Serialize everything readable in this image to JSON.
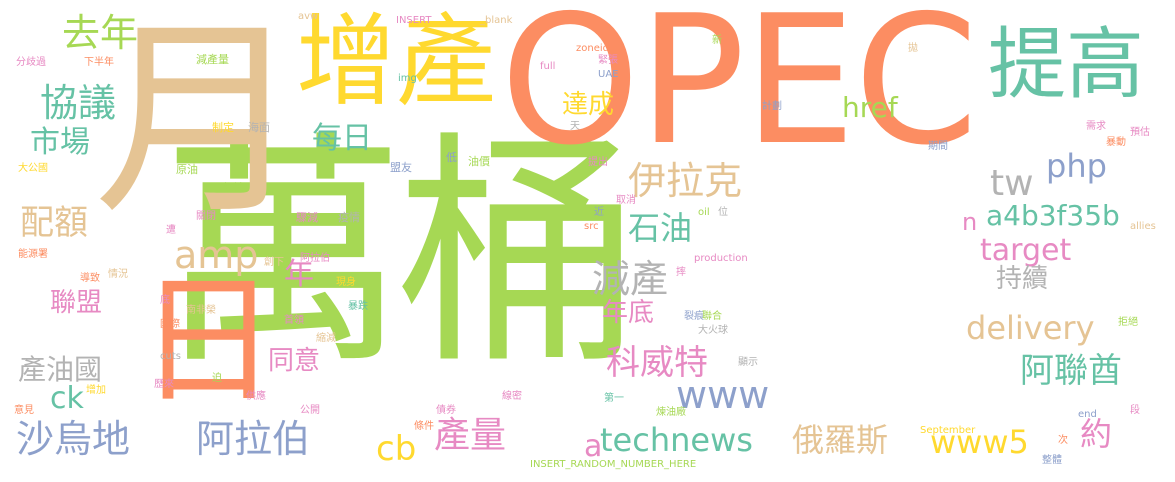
{
  "words": [
    {
      "text": "萬桶",
      "color": "#a6d854",
      "vertical": false
    },
    {
      "text": "OPEC",
      "color": "#fc8d62",
      "vertical": false
    },
    {
      "text": "月",
      "color": "#e5c494",
      "vertical": false
    },
    {
      "text": "日",
      "color": "#fc8d62",
      "vertical": false
    },
    {
      "text": "增產",
      "color": "#ffd92f",
      "vertical": false
    },
    {
      "text": "提高",
      "color": "#66c2a5",
      "vertical": false
    },
    {
      "text": "去年",
      "color": "#a6d854",
      "vertical": false
    },
    {
      "text": "協議",
      "color": "#66c2a5",
      "vertical": false
    },
    {
      "text": "市場",
      "color": "#66c2a5",
      "vertical": false
    },
    {
      "text": "每日",
      "color": "#66c2a5",
      "vertical": false
    },
    {
      "text": "達成",
      "color": "#ffd92f",
      "vertical": false
    },
    {
      "text": "href",
      "color": "#a6d854",
      "vertical": false
    },
    {
      "text": "php",
      "color": "#8da0cb",
      "vertical": false
    },
    {
      "text": "伊拉克",
      "color": "#e5c494",
      "vertical": false
    },
    {
      "text": "tw",
      "color": "#b3b3b3",
      "vertical": false
    },
    {
      "text": "配額",
      "color": "#e5c494",
      "vertical": false
    },
    {
      "text": "amp",
      "color": "#e5c494",
      "vertical": false
    },
    {
      "text": "a4b3f35b",
      "color": "#66c2a5",
      "vertical": false
    },
    {
      "text": "石油",
      "color": "#66c2a5",
      "vertical": false
    },
    {
      "text": "target",
      "color": "#e78ac3",
      "vertical": false
    },
    {
      "text": "n",
      "color": "#e78ac3",
      "vertical": false
    },
    {
      "text": "年",
      "color": "#e78ac3",
      "vertical": false
    },
    {
      "text": "減產",
      "color": "#b3b3b3",
      "vertical": false
    },
    {
      "text": "持續",
      "color": "#b3b3b3",
      "vertical": false
    },
    {
      "text": "聯盟",
      "color": "#e78ac3",
      "vertical": false
    },
    {
      "text": "年底",
      "color": "#e78ac3",
      "vertical": false
    },
    {
      "text": "delivery",
      "color": "#e5c494",
      "vertical": false
    },
    {
      "text": "產油國",
      "color": "#b3b3b3",
      "vertical": false
    },
    {
      "text": "同意",
      "color": "#e78ac3",
      "vertical": false
    },
    {
      "text": "科威特",
      "color": "#e78ac3",
      "vertical": false
    },
    {
      "text": "阿聯酋",
      "color": "#66c2a5",
      "vertical": false
    },
    {
      "text": "ck",
      "color": "#66c2a5",
      "vertical": false
    },
    {
      "text": "www",
      "color": "#8da0cb",
      "vertical": false
    },
    {
      "text": "沙烏地",
      "color": "#8da0cb",
      "vertical": false
    },
    {
      "text": "阿拉伯",
      "color": "#8da0cb",
      "vertical": false
    },
    {
      "text": "cb",
      "color": "#ffd92f",
      "vertical": false
    },
    {
      "text": "產量",
      "color": "#e78ac3",
      "vertical": false
    },
    {
      "text": "a",
      "color": "#e78ac3",
      "vertical": false
    },
    {
      "text": "technews",
      "color": "#66c2a5",
      "vertical": false
    },
    {
      "text": "俄羅斯",
      "color": "#e5c494",
      "vertical": false
    },
    {
      "text": "www5",
      "color": "#ffd92f",
      "vertical": false
    },
    {
      "text": "約",
      "color": "#e78ac3",
      "vertical": false
    },
    {
      "text": "分歧過",
      "color": "#e78ac3",
      "vertical": false
    },
    {
      "text": "下半年",
      "color": "#fc8d62",
      "vertical": false
    },
    {
      "text": "減產量",
      "color": "#a6d854",
      "vertical": false
    },
    {
      "text": "制定",
      "color": "#ffd92f",
      "vertical": false
    },
    {
      "text": "海面",
      "color": "#b3b3b3",
      "vertical": false
    },
    {
      "text": "大公國",
      "color": "#ffd92f",
      "vertical": false
    },
    {
      "text": "原油",
      "color": "#a6d854",
      "vertical": false
    },
    {
      "text": "盟友",
      "color": "#8da0cb",
      "vertical": false
    },
    {
      "text": "低",
      "color": "#8da0cb",
      "vertical": false
    },
    {
      "text": "油價",
      "color": "#a6d854",
      "vertical": false
    },
    {
      "text": "短缺",
      "color": "#a6d854",
      "vertical": false
    },
    {
      "text": "關閉",
      "color": "#e78ac3",
      "vertical": false
    },
    {
      "text": "驟減",
      "color": "#e78ac3",
      "vertical": false
    },
    {
      "text": "疫情",
      "color": "#b3b3b3",
      "vertical": false
    },
    {
      "text": "遭",
      "color": "#e78ac3",
      "vertical": false
    },
    {
      "text": "能源署",
      "color": "#fc8d62",
      "vertical": false
    },
    {
      "text": "阿拉伯",
      "color": "#e78ac3",
      "vertical": false
    },
    {
      "text": "創下",
      "color": "#e5c494",
      "vertical": false
    },
    {
      "text": "導致",
      "color": "#fc8d62",
      "vertical": false
    },
    {
      "text": "情況",
      "color": "#e5c494",
      "vertical": false
    },
    {
      "text": "現身",
      "color": "#ffd92f",
      "vertical": false
    },
    {
      "text": "首領",
      "color": "#e78ac3",
      "vertical": false
    },
    {
      "text": "暴跌",
      "color": "#66c2a5",
      "vertical": false
    },
    {
      "text": "底",
      "color": "#e78ac3",
      "vertical": false
    },
    {
      "text": "南非榮",
      "color": "#e5c494",
      "vertical": false
    },
    {
      "text": "國際",
      "color": "#fc8d62",
      "vertical": false
    },
    {
      "text": "縮減",
      "color": "#e5c494",
      "vertical": false
    },
    {
      "text": "cuts",
      "color": "#b3b3b3",
      "vertical": false
    },
    {
      "text": "歷來",
      "color": "#e78ac3",
      "vertical": false
    },
    {
      "text": "迫",
      "color": "#a6d854",
      "vertical": false
    },
    {
      "text": "增加",
      "color": "#ffd92f",
      "vertical": false
    },
    {
      "text": "意見",
      "color": "#fc8d62",
      "vertical": false
    },
    {
      "text": "供應",
      "color": "#e78ac3",
      "vertical": false
    },
    {
      "text": "公開",
      "color": "#e78ac3",
      "vertical": false
    },
    {
      "text": "條件",
      "color": "#fc8d62",
      "vertical": false
    },
    {
      "text": "債券",
      "color": "#e78ac3",
      "vertical": false
    },
    {
      "text": "線密",
      "color": "#e78ac3",
      "vertical": false
    },
    {
      "text": "INSERT_RANDOM_NUMBER_HERE",
      "color": "#a6d854",
      "vertical": false
    },
    {
      "text": "avw",
      "color": "#e5c494",
      "vertical": false
    },
    {
      "text": "INSERT",
      "color": "#e78ac3",
      "vertical": false
    },
    {
      "text": "_blank",
      "color": "#e5c494",
      "vertical": false
    },
    {
      "text": "新",
      "color": "#a6d854",
      "vertical": false
    },
    {
      "text": "zoneid",
      "color": "#fc8d62",
      "vertical": false
    },
    {
      "text": "緊張",
      "color": "#e78ac3",
      "vertical": false
    },
    {
      "text": "full",
      "color": "#e78ac3",
      "vertical": false
    },
    {
      "text": "UAE",
      "color": "#8da0cb",
      "vertical": false
    },
    {
      "text": "img",
      "color": "#66c2a5",
      "vertical": false
    },
    {
      "text": "天",
      "color": "#b3b3b3",
      "vertical": false
    },
    {
      "text": "提出",
      "color": "#e78ac3",
      "vertical": false
    },
    {
      "text": "取消",
      "color": "#e78ac3",
      "vertical": false
    },
    {
      "text": "近",
      "color": "#8da0cb",
      "vertical": false
    },
    {
      "text": "src",
      "color": "#fc8d62",
      "vertical": false
    },
    {
      "text": "oil",
      "color": "#a6d854",
      "vertical": false
    },
    {
      "text": "位",
      "color": "#b3b3b3",
      "vertical": false
    },
    {
      "text": "production",
      "color": "#e78ac3",
      "vertical": false
    },
    {
      "text": "摔",
      "color": "#e78ac3",
      "vertical": false
    },
    {
      "text": "裂痕",
      "color": "#8da0cb",
      "vertical": false
    },
    {
      "text": "聯合",
      "color": "#a6d854",
      "vertical": false
    },
    {
      "text": "大火球",
      "color": "#b3b3b3",
      "vertical": false
    },
    {
      "text": "顯示",
      "color": "#b3b3b3",
      "vertical": false
    },
    {
      "text": "第一",
      "color": "#66c2a5",
      "vertical": false
    },
    {
      "text": "煉油廠",
      "color": "#a6d854",
      "vertical": false
    },
    {
      "text": "September",
      "color": "#ffd92f",
      "vertical": false
    },
    {
      "text": "計劃",
      "color": "#8da0cb",
      "vertical": false
    },
    {
      "text": "拋",
      "color": "#e5c494",
      "vertical": false
    },
    {
      "text": "需求",
      "color": "#e78ac3",
      "vertical": false
    },
    {
      "text": "預估",
      "color": "#e78ac3",
      "vertical": false
    },
    {
      "text": "暴動",
      "color": "#fc8d62",
      "vertical": false
    },
    {
      "text": "期間",
      "color": "#8da0cb",
      "vertical": false
    },
    {
      "text": "allies",
      "color": "#e5c494",
      "vertical": false
    },
    {
      "text": "拒絕",
      "color": "#a6d854",
      "vertical": false
    },
    {
      "text": "end",
      "color": "#8da0cb",
      "vertical": false
    },
    {
      "text": "次",
      "color": "#fc8d62",
      "vertical": false
    },
    {
      "text": "整體",
      "color": "#8da0cb",
      "vertical": false
    },
    {
      "text": "段",
      "color": "#e78ac3",
      "vertical": false
    }
  ]
}
